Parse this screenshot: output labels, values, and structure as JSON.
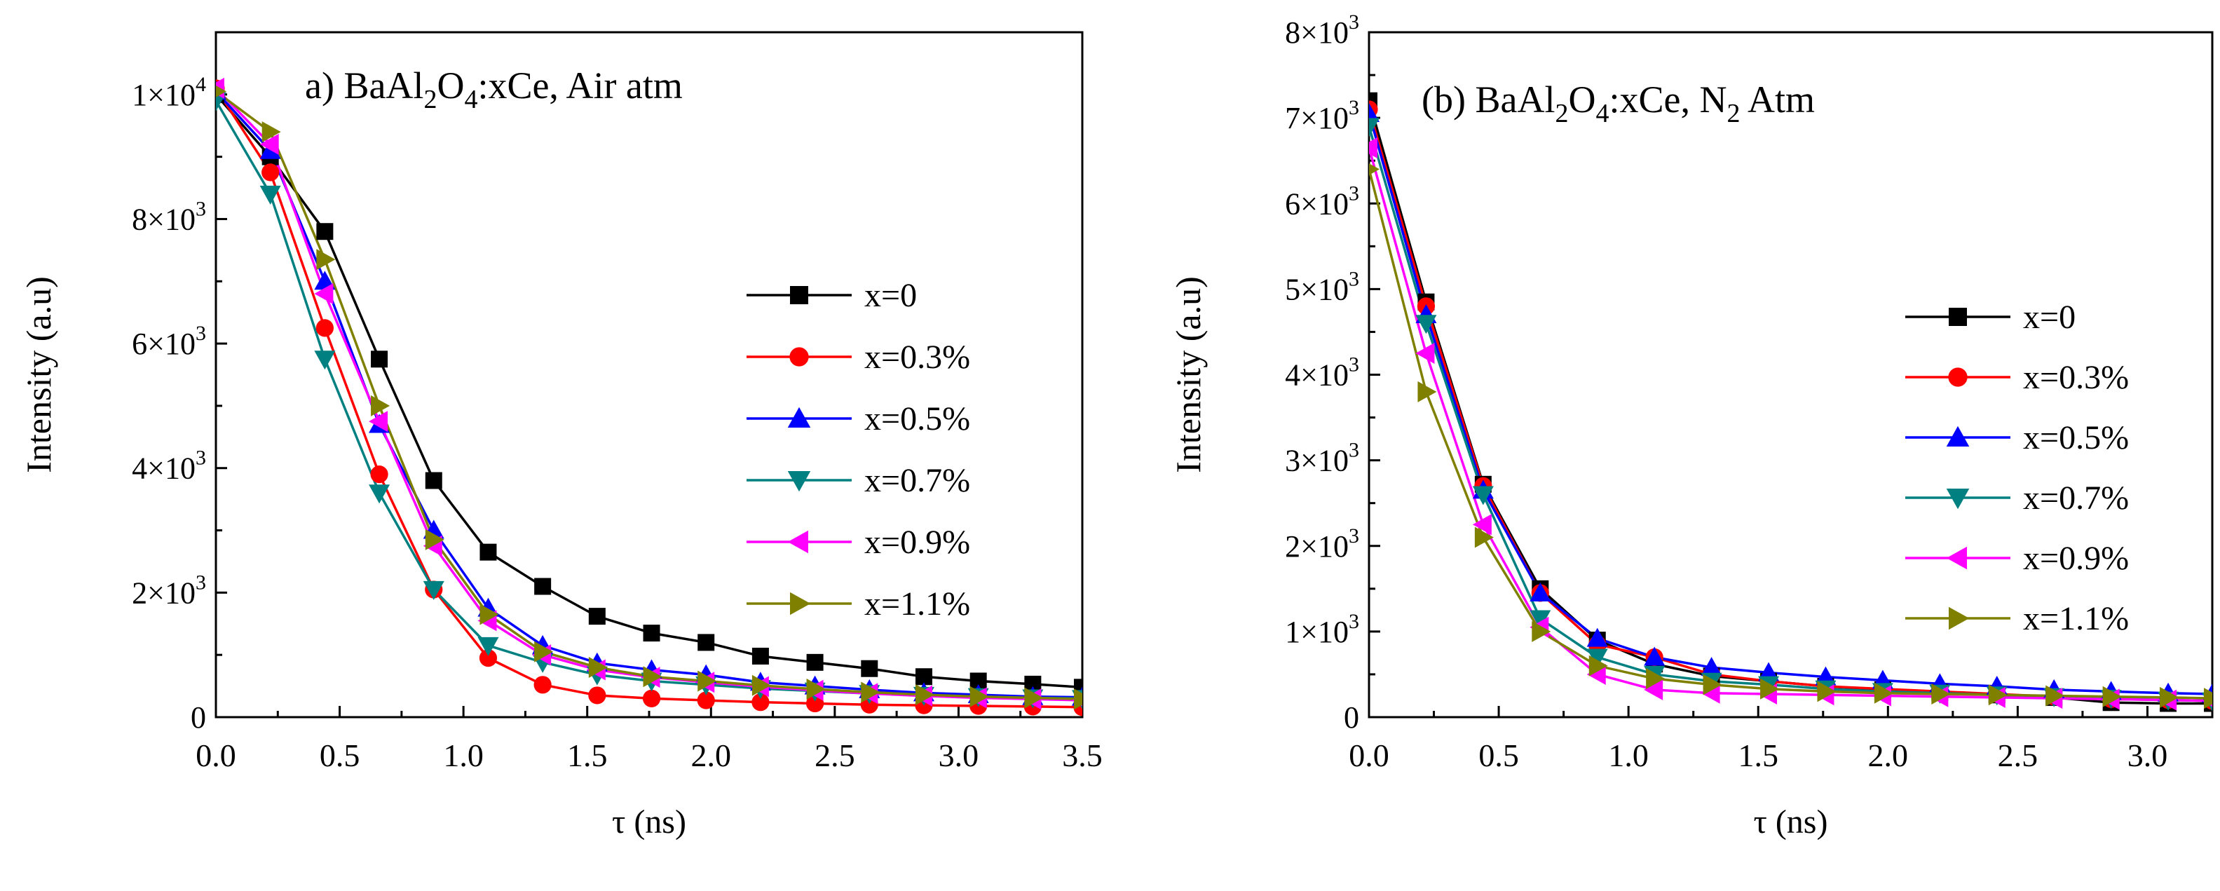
{
  "chart_data": [
    {
      "type": "line",
      "title": "a) BaAl2O4:xCe, Air atm",
      "title_parts": [
        "a) BaAl",
        "2",
        "O",
        "4",
        ":xCe, Air atm"
      ],
      "xlabel": "τ (ns)",
      "ylabel": "Intensity (a.u)",
      "xlim": [
        0,
        3.5
      ],
      "ylim": [
        0,
        11000
      ],
      "xticks": [
        "0.0",
        "0.5",
        "1.0",
        "1.5",
        "2.0",
        "2.5",
        "3.0",
        "3.5"
      ],
      "ytick_values": [
        0,
        2000,
        4000,
        6000,
        8000,
        10000
      ],
      "ytick_mantissa": [
        "0",
        "2×10",
        "4×10",
        "6×10",
        "8×10",
        "1×10"
      ],
      "ytick_exponent": [
        "",
        "3",
        "3",
        "3",
        "3",
        "4"
      ],
      "grid": false,
      "legend_position": "right",
      "x": [
        0,
        0.22,
        0.44,
        0.66,
        0.88,
        1.1,
        1.32,
        1.54,
        1.76,
        1.98,
        2.2,
        2.42,
        2.64,
        2.86,
        3.08,
        3.3,
        3.5
      ],
      "series": [
        {
          "name": "x=0",
          "color": "#000000",
          "marker": "square",
          "values": [
            10000,
            9000,
            7800,
            5750,
            3800,
            2650,
            2100,
            1620,
            1350,
            1200,
            980,
            880,
            780,
            650,
            580,
            530,
            480
          ]
        },
        {
          "name": "x=0.3%",
          "color": "#ff0000",
          "marker": "circle",
          "values": [
            10100,
            8750,
            6250,
            3900,
            2050,
            950,
            520,
            350,
            300,
            270,
            240,
            220,
            200,
            190,
            180,
            170,
            160
          ]
        },
        {
          "name": "x=0.5%",
          "color": "#0000ff",
          "marker": "triangle-up",
          "values": [
            10050,
            9100,
            7000,
            4700,
            3000,
            1750,
            1150,
            870,
            760,
            680,
            560,
            500,
            440,
            390,
            360,
            330,
            320
          ]
        },
        {
          "name": "x=0.7%",
          "color": "#008080",
          "marker": "triangle-down",
          "values": [
            9900,
            8400,
            5750,
            3600,
            2050,
            1150,
            880,
            680,
            580,
            520,
            460,
            420,
            380,
            350,
            330,
            310,
            300
          ]
        },
        {
          "name": "x=0.9%",
          "color": "#ff00ff",
          "marker": "triangle-left",
          "values": [
            10100,
            9200,
            6800,
            4750,
            2750,
            1550,
            1000,
            760,
            640,
            560,
            490,
            430,
            380,
            340,
            310,
            290,
            270
          ]
        },
        {
          "name": "x=1.1%",
          "color": "#808000",
          "marker": "triangle-right",
          "values": [
            10050,
            9400,
            7350,
            5000,
            2850,
            1650,
            1050,
            800,
            650,
            580,
            510,
            450,
            400,
            360,
            330,
            310,
            290
          ]
        }
      ]
    },
    {
      "type": "line",
      "title": "(b) BaAl2O4:xCe, N2 Atm",
      "title_parts": [
        "(b) BaAl",
        "2",
        "O",
        "4",
        ":xCe, N",
        "2",
        " Atm"
      ],
      "xlabel": "τ (ns)",
      "ylabel": "Intensity (a.u)",
      "xlim": [
        0,
        3.25
      ],
      "ylim": [
        0,
        8000
      ],
      "xticks": [
        "0.0",
        "0.5",
        "1.0",
        "1.5",
        "2.0",
        "2.5",
        "3.0"
      ],
      "ytick_values": [
        0,
        1000,
        2000,
        3000,
        4000,
        5000,
        6000,
        7000,
        8000
      ],
      "ytick_mantissa": [
        "0",
        "1×10",
        "2×10",
        "3×10",
        "4×10",
        "5×10",
        "6×10",
        "7×10",
        "8×10"
      ],
      "ytick_exponent": [
        "",
        "3",
        "3",
        "3",
        "3",
        "3",
        "3",
        "3",
        "3"
      ],
      "grid": false,
      "legend_position": "right",
      "x": [
        0,
        0.22,
        0.44,
        0.66,
        0.88,
        1.1,
        1.32,
        1.54,
        1.76,
        1.98,
        2.2,
        2.42,
        2.64,
        2.86,
        3.08,
        3.25
      ],
      "series": [
        {
          "name": "x=0",
          "color": "#000000",
          "marker": "square",
          "values": [
            7200,
            4850,
            2720,
            1500,
            900,
            620,
            480,
            420,
            360,
            320,
            290,
            260,
            230,
            170,
            160,
            160
          ]
        },
        {
          "name": "x=0.3%",
          "color": "#ff0000",
          "marker": "circle",
          "values": [
            7100,
            4800,
            2700,
            1450,
            850,
            700,
            500,
            420,
            360,
            330,
            300,
            270,
            240,
            210,
            200,
            190
          ]
        },
        {
          "name": "x=0.5%",
          "color": "#0000ff",
          "marker": "triangle-up",
          "values": [
            7050,
            4700,
            2650,
            1450,
            920,
            700,
            580,
            520,
            470,
            430,
            390,
            360,
            320,
            300,
            280,
            270
          ]
        },
        {
          "name": "x=0.7%",
          "color": "#008080",
          "marker": "triangle-down",
          "values": [
            6900,
            4600,
            2600,
            1150,
            700,
            500,
            420,
            380,
            330,
            300,
            280,
            260,
            240,
            220,
            200,
            190
          ]
        },
        {
          "name": "x=0.9%",
          "color": "#ff00ff",
          "marker": "triangle-left",
          "values": [
            6650,
            4250,
            2250,
            1050,
            500,
            320,
            280,
            270,
            260,
            250,
            240,
            230,
            220,
            210,
            200,
            190
          ]
        },
        {
          "name": "x=1.1%",
          "color": "#808000",
          "marker": "triangle-right",
          "values": [
            6400,
            3800,
            2100,
            1000,
            600,
            450,
            380,
            330,
            300,
            280,
            270,
            260,
            250,
            240,
            230,
            220
          ]
        }
      ]
    }
  ]
}
